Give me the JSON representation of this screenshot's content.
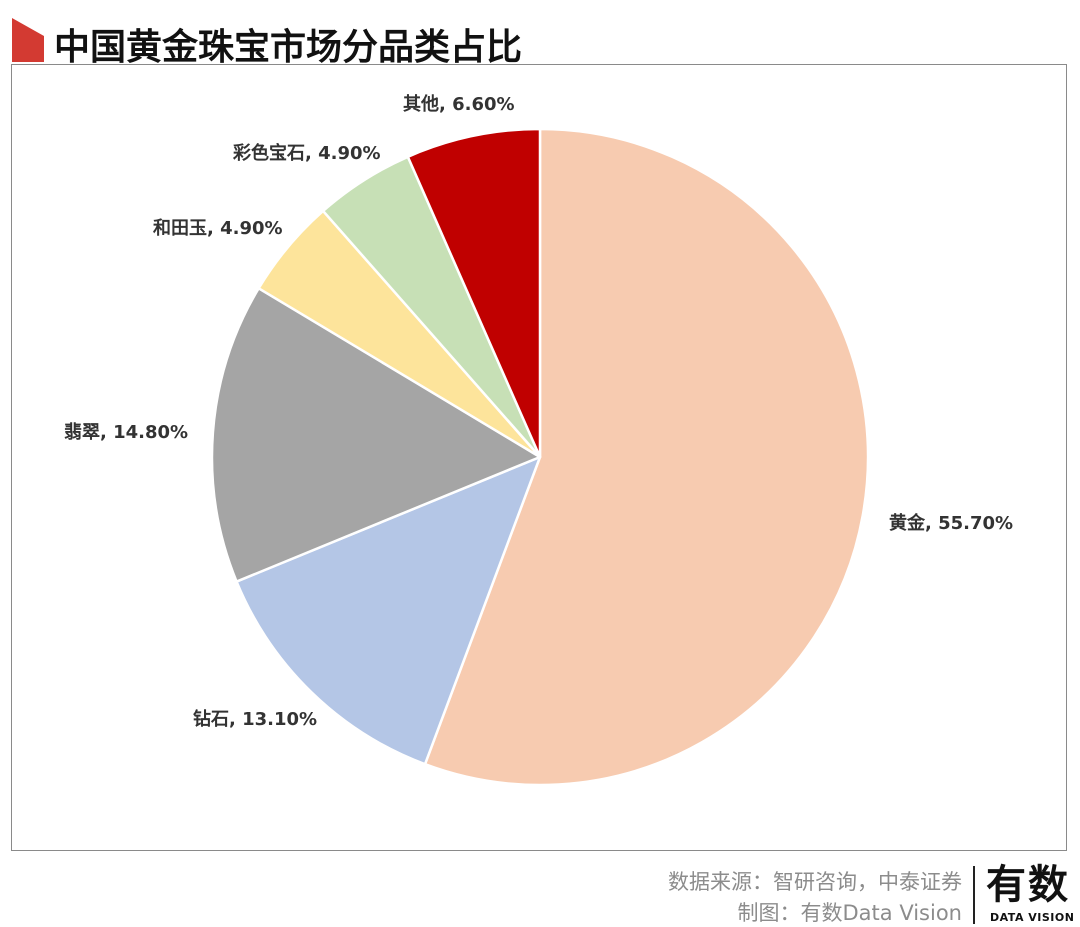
{
  "title": "中国黄金珠宝市场分品类占比",
  "colors": {
    "title_marker": "#d33a32",
    "frame_border": "#8a8a8a",
    "label_text": "#333333",
    "footer_text": "#8c8c8c"
  },
  "chart_data": {
    "type": "pie",
    "title": "中国黄金珠宝市场分品类占比",
    "start": "12 o'clock",
    "direction": "clockwise",
    "slices": [
      {
        "label": "黄金",
        "value": 55.7,
        "display": "黄金, 55.70%",
        "color": "#f7cbb0"
      },
      {
        "label": "钻石",
        "value": 13.1,
        "display": "钻石, 13.10%",
        "color": "#b4c6e6"
      },
      {
        "label": "翡翠",
        "value": 14.8,
        "display": "翡翠, 14.80%",
        "color": "#a5a5a5"
      },
      {
        "label": "和田玉",
        "value": 4.9,
        "display": "和田玉, 4.90%",
        "color": "#fde49b"
      },
      {
        "label": "彩色宝石",
        "value": 4.9,
        "display": "彩色宝石, 4.90%",
        "color": "#c7e0b6"
      },
      {
        "label": "其他",
        "value": 6.6,
        "display": "其他, 6.60%",
        "color": "#c00000"
      }
    ]
  },
  "footer": {
    "source": "数据来源：智研咨询，中泰证券",
    "credit": "制图：有数Data Vision"
  },
  "logo": {
    "main": "有数",
    "sub": "DATA VISION"
  }
}
